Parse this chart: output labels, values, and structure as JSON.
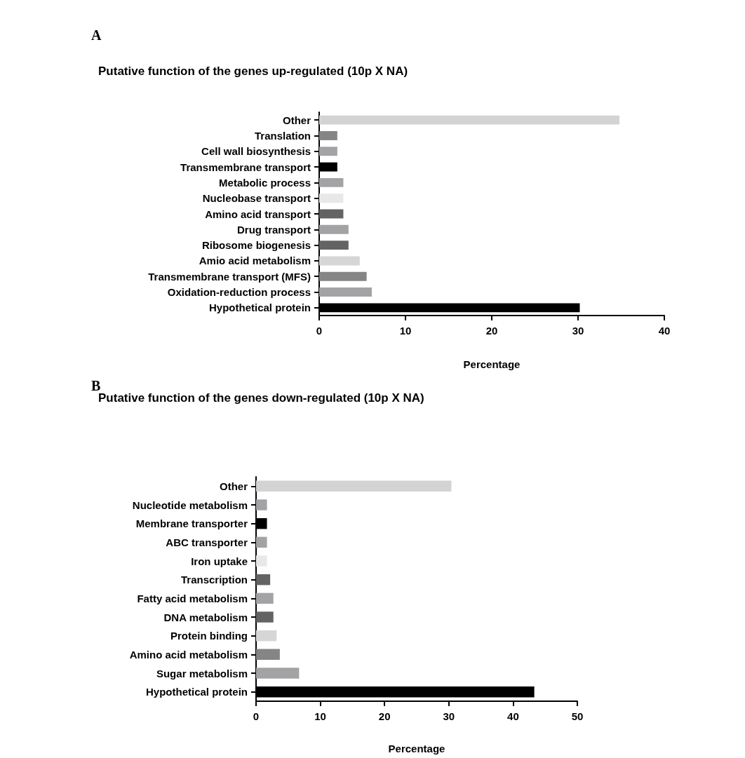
{
  "chart_data": [
    {
      "type": "bar",
      "orientation": "horizontal",
      "title": "Putative function of the genes up-regulated (10p X NA)",
      "xlabel": "Percentage",
      "annotations": [
        "A"
      ],
      "categories": [
        "Other",
        "Translation",
        "Cell wall biosynthesis",
        "Transmembrane transport",
        "Metabolic process",
        "Nucleobase transport",
        "Amino acid transport",
        "Drug transport",
        "Ribosome biogenesis",
        "Amio acid metabolism",
        "Transmembrane transport (MFS)",
        "Oxidation-reduction process",
        "Hypothetical protein"
      ],
      "values": [
        34.8,
        2.1,
        2.1,
        2.1,
        2.8,
        2.8,
        2.8,
        3.4,
        3.4,
        4.7,
        5.5,
        6.1,
        30.2
      ],
      "colors": [
        "#d3d3d3",
        "#858585",
        "#a3a3a6",
        "#000000",
        "#a3a3a6",
        "#e8e8e8",
        "#636363",
        "#a3a3a6",
        "#636363",
        "#d6d6d6",
        "#858585",
        "#a3a3a6",
        "#000000"
      ],
      "xlim": [
        0,
        40
      ],
      "xticks": [
        0,
        10,
        20,
        30,
        40
      ],
      "grid": false
    },
    {
      "type": "bar",
      "orientation": "horizontal",
      "title": "Putative function of the genes down-regulated (10p X NA)",
      "xlabel": "Percentage",
      "annotations": [
        "B"
      ],
      "categories": [
        "Other",
        "Nucleotide metabolism",
        "Membrane transporter",
        "ABC transporter",
        "Iron uptake",
        "Transcription",
        "Fatty acid metabolism",
        "DNA metabolism",
        "Protein binding",
        "Amino acid metabolism",
        "Sugar metabolism",
        "Hypothetical protein"
      ],
      "values": [
        30.4,
        1.7,
        1.7,
        1.7,
        1.7,
        2.2,
        2.7,
        2.7,
        3.2,
        3.7,
        6.7,
        43.3
      ],
      "colors": [
        "#d3d3d3",
        "#a3a3a6",
        "#000000",
        "#a3a3a6",
        "#e8e8e8",
        "#636363",
        "#a3a3a6",
        "#636363",
        "#d6d6d6",
        "#858585",
        "#a3a3a6",
        "#000000"
      ],
      "xlim": [
        0,
        50
      ],
      "xticks": [
        0,
        10,
        20,
        30,
        40,
        50
      ],
      "grid": false
    }
  ]
}
